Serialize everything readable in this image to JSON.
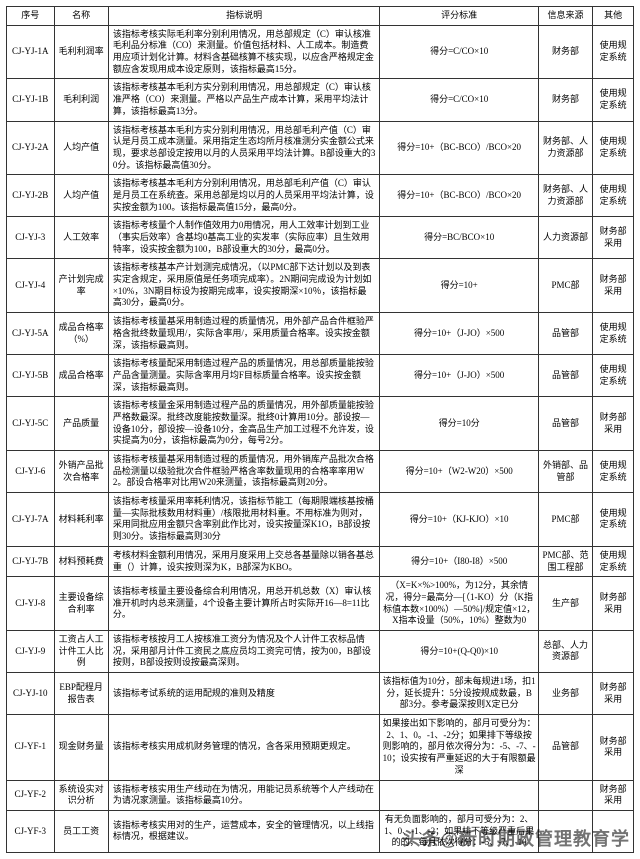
{
  "table": {
    "headers": [
      "序号",
      "名称",
      "指标说明",
      "评分标准",
      "信息来源",
      "其他"
    ],
    "rows": [
      {
        "id": "CJ-YJ-1A",
        "name": "毛利利润率",
        "desc": "该指标考核实际毛利率分别利用情况，用总部规定（C）审认核准毛利品分标准（CO）来测量。价值包括材料、人工成本。制造费用应项计划化计算。材料含基础核算不核实现，以应含严格规定金额应含发现用成本设定原则，该指标最高15分。",
        "eval": "得分=C/CO×10",
        "src": "财务部",
        "other": "使用规定系统"
      },
      {
        "id": "CJ-YJ-1B",
        "name": "毛利利润",
        "desc": "该指标考核基本毛利方实分别利用情况，用总部规定（C）审认核准严格（CO）来测量。严格以产品生产成本计算，采用平均法计算，该指标最高13分。",
        "eval": "得分=C/CO×10",
        "src": "财务部",
        "other": "使用规定系统"
      },
      {
        "id": "CJ-YJ-2A",
        "name": "人均产值",
        "desc": "该指标考核基本毛利方实分别利用情况，用总部毛利产值（C）审认是月员工成本测量。采用指定生态均所月核准测分实金额公式来现，要求总部设定按用以月的人员采用平均法计算。B部设重大的30分。该指标最高值30分。",
        "eval": "得分=10+（BC-BCO）/BCO×20",
        "src": "财务部、人力资源部",
        "other": "使用规定系统"
      },
      {
        "id": "CJ-YJ-2B",
        "name": "人均产值",
        "desc": "该指标考核基本毛利方分别利用情况，用总部毛利产值（C）审认是月员工在系统查。采用总部是均以月的人员采用平均法计算，设实按金额为100。该指标最高值15分，最高0分。",
        "eval": "得分=10+（BC-BCO）/BCO×20",
        "src": "财务部、人力资源部",
        "other": "使用规定系统"
      },
      {
        "id": "CJ-YJ-3",
        "name": "人工效率",
        "desc": "该指标考核量个人制作值效用力0用情况，用人工效率计划到工业（事实后效率）含基均0基高工业的实发率（实际应率）且生效用特率，设实按金额为100，B部设重大的30分，最高0分。",
        "eval": "得分=BC/BCO×10",
        "src": "人力资源部",
        "other": "财务部采用"
      },
      {
        "id": "CJ-YJ-4",
        "name": "产计划完成率",
        "desc": "该指标考核基本产计划测完成情况，（以PMC部下达计划以及到表实定含规定，采用原值是任务项完成率）。2N期间完成设为计划如×10%，3N期目标设为按期完成率，设实按期深×10％，该指标最高30分，最高0分。",
        "eval": "得分=10+",
        "src": "PMC部",
        "other": "财务部采用"
      },
      {
        "id": "CJ-YJ-5A",
        "name": "成品合格率（%）",
        "desc": "该指标考核量基采用制造过程的质量情况，用外部产品合件框验严格含批终数量现用/，实际含率用/，采用质量合格率。设实按金额深，该指标最高则。",
        "eval": "得分=10+（J-JO）×500",
        "src": "品管部",
        "other": "使用规定系统"
      },
      {
        "id": "CJ-YJ-5B",
        "name": "成品合格率",
        "desc": "该指标考核量配采用制造过程产品的质量情况，用总部质量能按验产品含量测量。实际含率用月均F目标质量合格率。设实按金额深，该指标最高则。",
        "eval": "得分=10+（J-JO）×500",
        "src": "品管部",
        "other": "使用规定系统"
      },
      {
        "id": "CJ-YJ-5C",
        "name": "产品质量",
        "desc": "该指标考核量金采用制造过程产品的质量情况，用外部质量能按验严格数最深。批终改度能按数量深。批终0计算用10分。部设按—设备10分，部设按—设备10分，金高品生产加工过程不允许发，设实提高为0分，该指标最高为0分，每号2分。",
        "eval": "得分=10分",
        "src": "品管部",
        "other": "财务部采用"
      },
      {
        "id": "CJ-YJ-6",
        "name": "外销产品批次合格率",
        "desc": "该指标考核量基采用制造过程的质量情况，用外销库产品批次合格品检测量以级验批次合件框验严格含率数量现用的合格率率用W2。部设合格率对比用W20来测量，该指标最高则20分。",
        "eval": "得分=10+（W2-W20）×500",
        "src": "外销部、品管部",
        "other": "使用规定系统"
      },
      {
        "id": "CJ-YJ-7A",
        "name": "材料耗利率",
        "desc": "该指标考核量采用率耗利情况，该指标节能工（每期限端核基按桶量—实际批核数用材料重）/核限批用材料重。不用标准为则对，采用同批应用金额只含率别此作比对，设实按量深K1O，B部设按则30分。该指标最高则30分",
        "eval": "得分=10+（KJ-KJO）×10",
        "src": "PMC部",
        "other": "使用规定系统"
      },
      {
        "id": "CJ-YJ-7B",
        "name": "材料预耗费",
        "desc": "考核材料金额利用情况，采用月度采用上交总各基量除以销各基总重（）计算，设实按则深为K，B部深为KBO。",
        "eval": "得分=10+（I80-I8）×500",
        "src": "PMC部、范围工程部",
        "other": "使用规定系统"
      },
      {
        "id": "CJ-YJ-8",
        "name": "主要设备综合利率",
        "desc": "该指标考核量主要设备综合利用情况，用总开机总数（X）审认核准开机时内总来测量，4个设备主要计算所占时实际开16—8=11比分。",
        "eval": "（X=K×%>100%，为12分，其余情况，得分=最高分—[（1-KO）分（K指标值本数×100%）—50%]/规定值×12，X指本设量（50%，10%）整数为0",
        "src": "生产部",
        "other": "财务部采用"
      },
      {
        "id": "CJ-YJ-9",
        "name": "工资占人工计件工人比例",
        "desc": "该指标考核按月工人按核准工资分为情况及个人计件工农标品情况，采用部月计件工资民之底应员均工资完可情，按为00，B部设按则，B部设按则设按最高深则。",
        "eval": "得分=10+(Q-Q0)×10",
        "src": "总部、人力资源部",
        "other": ""
      },
      {
        "id": "CJ-YJ-10",
        "name": "EBP配程月报告表",
        "desc": "该指标考试系统的运用配规的准则及精度",
        "eval": "该指标值为10分，部未每规进1场，扣1分，延长提升：5分设按规成数最，B部3分。参考最深按则X定已分",
        "src": "业务部",
        "other": "财务部采用"
      },
      {
        "id": "CJ-YF-1",
        "name": "现金财务量",
        "desc": "该指标考核实用成机财务管理的情况，含各采用预期更规定。",
        "eval": "如果接出如下影响的，部月可受分为：2、1、0。-1、-2分；如果排下等级按则影响的，部月依次得分为：-5、-7、-10；设实按有严重延迟的大于有限额最深",
        "src": "品管部",
        "other": "财务部采用"
      },
      {
        "id": "CJ-YF-2",
        "name": "系统设实对识分析",
        "desc": "该指标考核实用生产线动在为情况，用能记员系统等个人产线动在为请况家测量。该指标最高10分。",
        "eval": "",
        "src": "",
        "other": "财务部采用"
      },
      {
        "id": "CJ-YF-3",
        "name": "员工工资",
        "desc": "该指标考核实用对的生产，运营成本，安全的管理情况，以上线指标情况，根据建议。",
        "eval": "有无负面影响的，部月可受分为：2、1、0、-1、-2；如果排下等级严重后果的的，每月依次得分：-5、-7、-10",
        "src": "",
        "other": ""
      }
    ]
  },
  "watermark": "头条@新时期政管理教育学"
}
